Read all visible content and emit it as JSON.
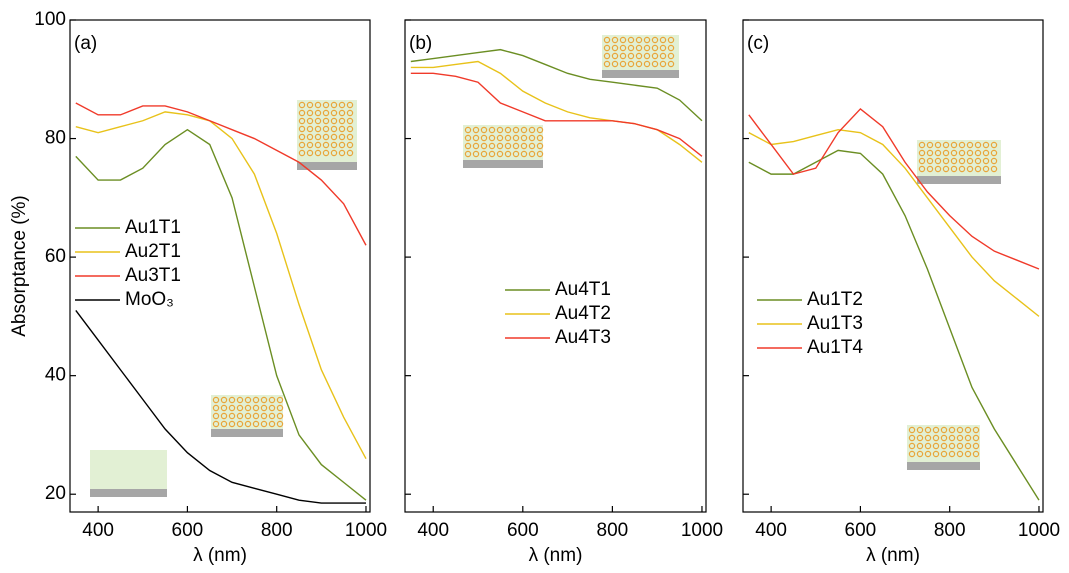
{
  "chart_data": [
    {
      "type": "line",
      "label": "(a)",
      "xlabel": "λ (nm)",
      "ylabel": "Absorptance (%)",
      "xlim": [
        337,
        1009
      ],
      "ylim": [
        17,
        100
      ],
      "xticks": [
        400,
        600,
        800,
        1000
      ],
      "yticks": [
        20,
        40,
        60,
        80,
        100
      ],
      "show_ytick_labels": true,
      "legend": "center left",
      "x": [
        350,
        400,
        450,
        500,
        550,
        600,
        650,
        700,
        750,
        800,
        850,
        900,
        950,
        1000
      ],
      "series": [
        {
          "name": "Au1T1",
          "color": "#6b8e23",
          "values": [
            77,
            73,
            73,
            75,
            79,
            81.5,
            79,
            70,
            55,
            40,
            30,
            25,
            22,
            19
          ]
        },
        {
          "name": "Au2T1",
          "color": "#e8c21a",
          "values": [
            82,
            81,
            82,
            83,
            84.5,
            84,
            83,
            80,
            74,
            64,
            52,
            41,
            33,
            26
          ]
        },
        {
          "name": "Au3T1",
          "color": "#f03a2a",
          "values": [
            86,
            84,
            84,
            85.5,
            85.5,
            84.5,
            83,
            81.5,
            80,
            78,
            76,
            73,
            69,
            62
          ]
        },
        {
          "name": "MoO₃",
          "color": "#000000",
          "values": [
            51,
            46,
            41,
            36,
            31,
            27,
            24,
            22,
            21,
            20,
            19,
            18.5,
            18.5,
            18.5
          ]
        }
      ]
    },
    {
      "type": "line",
      "label": "(b)",
      "xlabel": "λ (nm)",
      "xlim": [
        337,
        1009
      ],
      "ylim": [
        17,
        100
      ],
      "xticks": [
        400,
        600,
        800,
        1000
      ],
      "yticks": [
        20,
        40,
        60,
        80,
        100
      ],
      "show_ytick_labels": false,
      "legend": "center",
      "x": [
        350,
        400,
        450,
        500,
        550,
        600,
        650,
        700,
        750,
        800,
        850,
        900,
        950,
        1000
      ],
      "series": [
        {
          "name": "Au4T1",
          "color": "#6b8e23",
          "values": [
            93,
            93.5,
            94,
            94.5,
            95,
            94,
            92.5,
            91,
            90,
            89.5,
            89,
            88.5,
            86.5,
            83
          ]
        },
        {
          "name": "Au4T2",
          "color": "#e8c21a",
          "values": [
            92,
            92,
            92.5,
            93,
            91,
            88,
            86,
            84.5,
            83.5,
            83,
            82.5,
            81.5,
            79,
            76
          ]
        },
        {
          "name": "Au4T3",
          "color": "#f03a2a",
          "values": [
            91,
            91,
            90.5,
            89.5,
            86,
            84.5,
            83,
            83,
            83,
            83,
            82.5,
            81.5,
            80,
            77
          ]
        }
      ]
    },
    {
      "type": "line",
      "label": "(c)",
      "xlabel": "λ (nm)",
      "xlim": [
        337,
        1009
      ],
      "ylim": [
        17,
        100
      ],
      "xticks": [
        400,
        600,
        800,
        1000
      ],
      "yticks": [
        20,
        40,
        60,
        80,
        100
      ],
      "show_ytick_labels": false,
      "legend": "lower left",
      "x": [
        350,
        400,
        450,
        500,
        550,
        600,
        650,
        700,
        750,
        800,
        850,
        900,
        950,
        1000
      ],
      "series": [
        {
          "name": "Au1T2",
          "color": "#6b8e23",
          "values": [
            76,
            74,
            74,
            76,
            78,
            77.5,
            74,
            67,
            58,
            48,
            38,
            31,
            25,
            19
          ]
        },
        {
          "name": "Au1T3",
          "color": "#e8c21a",
          "values": [
            81,
            79,
            79.5,
            80.5,
            81.5,
            81,
            79,
            75,
            70,
            65,
            60,
            56,
            53,
            50
          ]
        },
        {
          "name": "Au1T4",
          "color": "#f03a2a",
          "values": [
            84,
            79,
            74,
            75,
            81,
            85,
            82,
            76,
            71,
            67,
            63.5,
            61,
            59.5,
            58
          ]
        }
      ]
    }
  ]
}
